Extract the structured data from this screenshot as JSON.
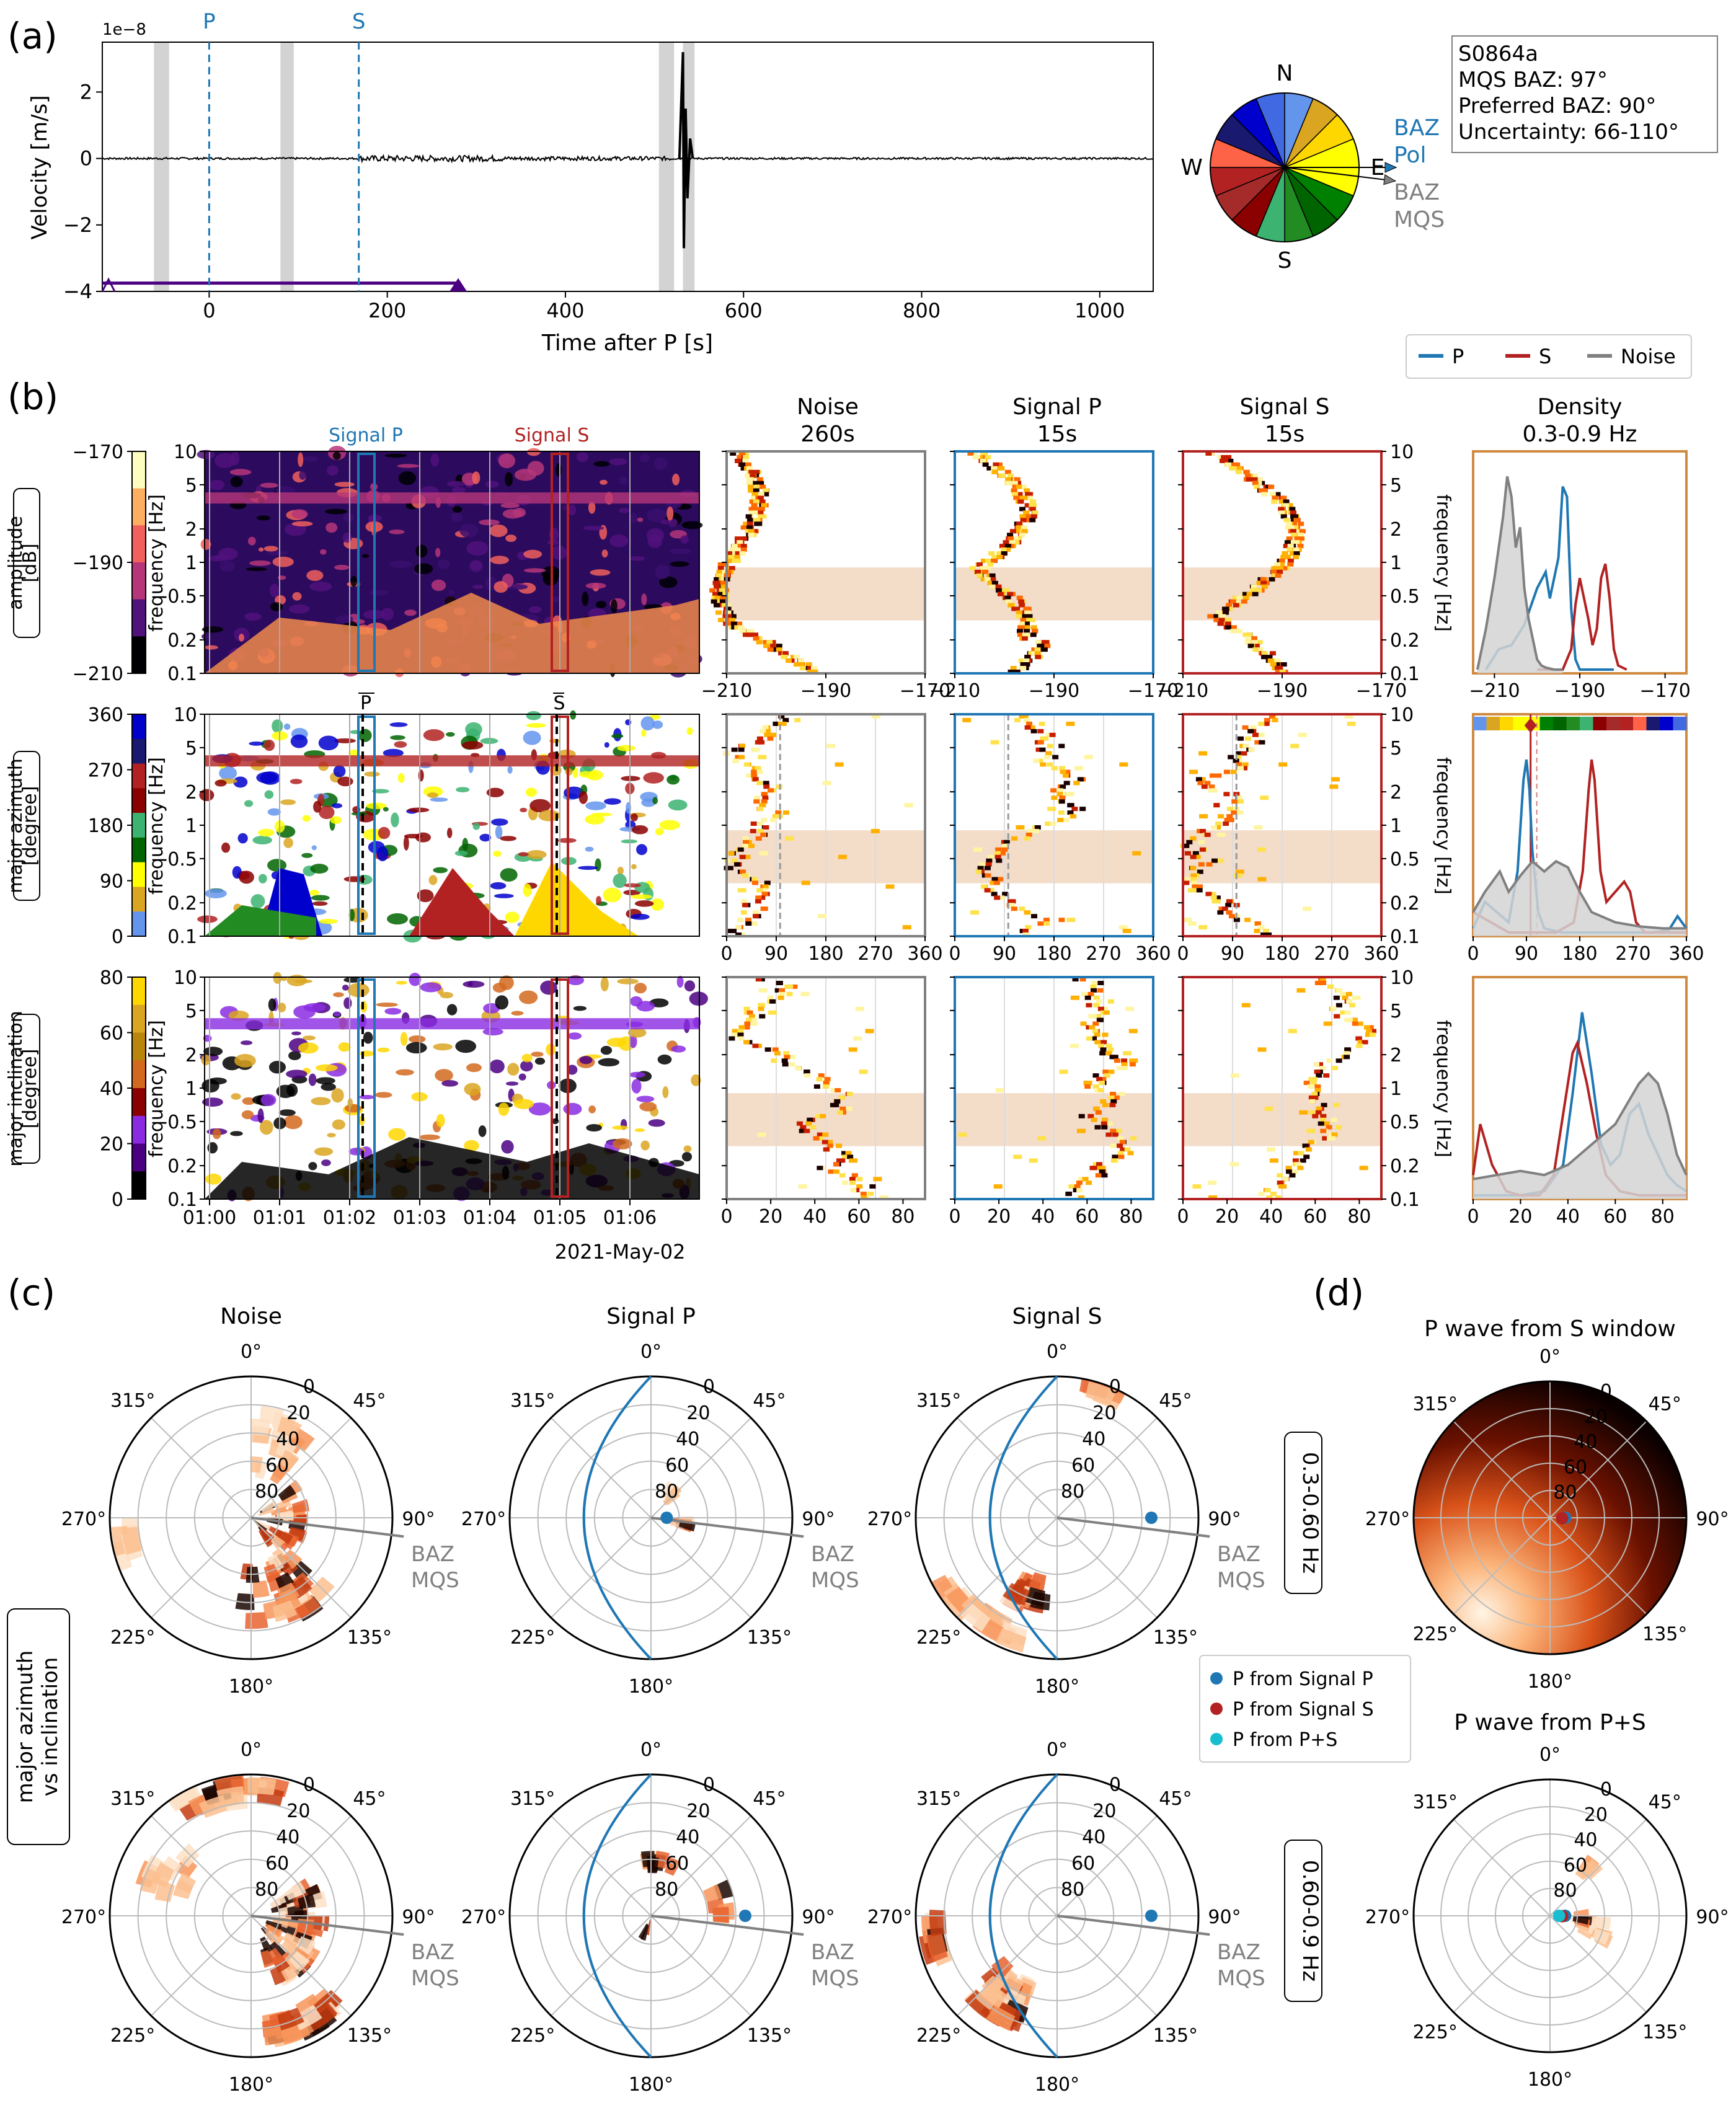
{
  "panel_labels": [
    "(a)",
    "(b)",
    "(c)",
    "(d)"
  ],
  "colors": {
    "p": "#1f77b4",
    "s": "#b22222",
    "noise": "#808080",
    "density_frame": "#d08a40",
    "band": "#f3dcc8",
    "waveform": "#000000",
    "gap": "#d3d3d3",
    "purple": "#4b0082",
    "p_from_ps": "#17becf"
  },
  "panel_a": {
    "exponent": "1e−8",
    "ylabel": "Velocity [m/s]",
    "xlabel": "Time after P [s]",
    "x_ticks": [
      "0",
      "200",
      "400",
      "600",
      "800",
      "1000"
    ],
    "y_ticks": [
      "2",
      "0",
      "−2",
      "−4"
    ],
    "p_label": "P",
    "s_label": "S",
    "compass_labels": {
      "n": "N",
      "e": "E",
      "s": "S",
      "w": "W"
    },
    "baz_pol": [
      "BAZ",
      "Pol"
    ],
    "baz_mqs": [
      "BAZ",
      "MQS"
    ],
    "info_box": [
      "S0864a",
      "MQS BAZ: 97°",
      "Preferred BAZ: 90°",
      "Uncertainty: 66-110°"
    ]
  },
  "legend_b": {
    "p": "P",
    "s": "S",
    "noise": "Noise"
  },
  "panel_b": {
    "col_titles": [
      [
        "Noise",
        "260s"
      ],
      [
        "Signal P",
        "15s"
      ],
      [
        "Signal S",
        "15s"
      ],
      [
        "Density",
        "0.3-0.9 Hz"
      ]
    ],
    "signal_p_label": "Signal P",
    "signal_s_label": "Signal S",
    "rows": [
      {
        "name": "amplitude",
        "unit": "[dB]",
        "cbar_ticks": [
          "−170",
          "−190",
          "−210"
        ],
        "x_ticks": [
          "−210",
          "−190",
          "−170"
        ]
      },
      {
        "name": "major azimuth",
        "unit": "[degree]",
        "cbar_ticks": [
          "360",
          "270",
          "180",
          "90",
          "0"
        ],
        "x_ticks": [
          "0",
          "90",
          "180",
          "270",
          "360"
        ]
      },
      {
        "name": "major inclination",
        "unit": "[degree]",
        "cbar_ticks": [
          "80",
          "60",
          "40",
          "20",
          "0"
        ],
        "x_ticks": [
          "0",
          "20",
          "40",
          "60",
          "80"
        ]
      }
    ],
    "freq_label": "frequency [Hz]",
    "freq_ticks": [
      "10",
      "5",
      "2",
      "1",
      "0.5",
      "0.2",
      "0.1"
    ],
    "time_ticks": [
      "01:00",
      "01:01",
      "01:02",
      "01:03",
      "01:04",
      "01:05",
      "01:06"
    ],
    "date_label": "2021-May-02",
    "p_marker": "P",
    "s_marker": "S"
  },
  "panel_c": {
    "col_titles": [
      "Noise",
      "Signal P",
      "Signal S"
    ],
    "row_labels": [
      "0.3-0.60 Hz",
      "0.60-0.9 Hz"
    ],
    "side_label": [
      "major azimuth",
      "vs inclination"
    ],
    "angle_labels": [
      "0°",
      "45°",
      "90°",
      "135°",
      "180°",
      "225°",
      "270°",
      "315°"
    ],
    "radial_labels": [
      "0",
      "20",
      "40",
      "60",
      "80"
    ],
    "baz_label": [
      "BAZ",
      "MQS"
    ],
    "legend": [
      "P from Signal P",
      "P from Signal S",
      "P from P+S"
    ]
  },
  "panel_d": {
    "titles": [
      "P wave from S window",
      "P wave from P+S"
    ]
  },
  "chart_data": [
    {
      "type": "line",
      "title": "",
      "xlabel": "Time after P [s]",
      "ylabel": "Velocity [m/s]",
      "xlim": [
        -120,
        1060
      ],
      "ylim": [
        -4,
        3.5
      ],
      "y_scale_factor": 1e-08,
      "markers": [
        {
          "name": "P",
          "x": 0
        },
        {
          "name": "S",
          "x": 168
        }
      ],
      "gaps": [
        [
          -62,
          -45
        ],
        [
          80,
          95
        ],
        [
          505,
          522
        ],
        [
          532,
          545
        ]
      ],
      "glitch_peak": {
        "x": 532,
        "y_max": 3.2,
        "y_min": -2.7
      },
      "window_bar": {
        "from": -120,
        "to": 288,
        "y": -3.75
      }
    },
    {
      "type": "pie",
      "title": "",
      "labels": [
        "N",
        "E",
        "S",
        "W"
      ],
      "baz_pol_deg": 90,
      "baz_mqs_deg": 97
    },
    {
      "type": "line",
      "title": "Density 0.3-0.9 Hz",
      "panel": "amplitude",
      "xlim": [
        -215,
        -165
      ],
      "series": [
        {
          "name": "P",
          "x": [
            -212,
            -209,
            -206,
            -203,
            -200,
            -198,
            -197,
            -195,
            -194,
            -193,
            -192,
            -191,
            -190,
            -188,
            -186,
            -182
          ],
          "y": [
            0,
            0.1,
            0.12,
            0.22,
            0.4,
            0.48,
            0.35,
            0.55,
            0.9,
            0.85,
            0.3,
            0.05,
            0,
            0,
            0,
            0
          ]
        },
        {
          "name": "S",
          "x": [
            -200,
            -194,
            -192,
            -191,
            -190,
            -188,
            -187,
            -186,
            -185,
            -184,
            -183,
            -182,
            -181,
            -179
          ],
          "y": [
            0,
            0,
            0.1,
            0.32,
            0.45,
            0.25,
            0.12,
            0.2,
            0.45,
            0.52,
            0.35,
            0.1,
            0.02,
            0
          ]
        },
        {
          "name": "Noise",
          "x": [
            -214,
            -212,
            -210,
            -209,
            -208,
            -207,
            -206,
            -205,
            -204,
            -203,
            -202,
            -201,
            -200,
            -199,
            -198,
            -196,
            -194
          ],
          "y": [
            0,
            0.2,
            0.45,
            0.6,
            0.75,
            0.95,
            0.85,
            0.6,
            0.7,
            0.4,
            0.25,
            0.15,
            0.05,
            0.02,
            0.01,
            0,
            0
          ]
        }
      ]
    },
    {
      "type": "line",
      "title": "",
      "panel": "major azimuth",
      "xlim": [
        0,
        360
      ],
      "vline": 97,
      "series": [
        {
          "name": "P",
          "x": [
            0,
            20,
            40,
            60,
            75,
            85,
            90,
            95,
            100,
            110,
            120,
            150,
            180,
            220,
            260,
            300,
            330,
            345,
            360
          ],
          "y": [
            0.02,
            0.15,
            0.1,
            0.05,
            0.3,
            0.75,
            0.85,
            0.7,
            0.4,
            0.1,
            0.02,
            0,
            0,
            0,
            0,
            0,
            0.01,
            0.08,
            0.02
          ]
        },
        {
          "name": "S",
          "x": [
            0,
            30,
            60,
            100,
            140,
            170,
            185,
            195,
            200,
            205,
            215,
            225,
            240,
            255,
            265,
            275,
            290,
            320,
            360
          ],
          "y": [
            0.1,
            0.05,
            0,
            0,
            0,
            0.05,
            0.3,
            0.7,
            0.85,
            0.75,
            0.3,
            0.15,
            0.2,
            0.25,
            0.2,
            0.05,
            0,
            0,
            0
          ]
        },
        {
          "name": "Noise",
          "x": [
            0,
            20,
            45,
            60,
            80,
            100,
            120,
            140,
            160,
            180,
            200,
            240,
            280,
            320,
            360
          ],
          "y": [
            0.1,
            0.2,
            0.3,
            0.2,
            0.28,
            0.35,
            0.3,
            0.35,
            0.32,
            0.2,
            0.1,
            0.05,
            0.03,
            0.02,
            0.02
          ]
        }
      ]
    },
    {
      "type": "line",
      "title": "",
      "panel": "major inclination",
      "xlim": [
        0,
        90
      ],
      "series": [
        {
          "name": "P",
          "x": [
            0,
            10,
            20,
            30,
            38,
            42,
            46,
            50,
            54,
            58,
            62,
            66,
            70,
            74,
            78,
            82,
            86,
            90
          ],
          "y": [
            0,
            0,
            0,
            0.02,
            0.15,
            0.5,
            0.9,
            0.6,
            0.25,
            0.15,
            0.2,
            0.4,
            0.45,
            0.3,
            0.2,
            0.1,
            0.05,
            0.02
          ]
        },
        {
          "name": "S",
          "x": [
            0,
            3,
            8,
            14,
            20,
            28,
            34,
            38,
            42,
            44,
            48,
            52,
            56,
            62,
            70,
            80,
            90
          ],
          "y": [
            0.1,
            0.35,
            0.15,
            0.02,
            0,
            0,
            0.1,
            0.4,
            0.7,
            0.75,
            0.55,
            0.3,
            0.1,
            0.02,
            0,
            0,
            0
          ]
        },
        {
          "name": "Noise",
          "x": [
            0,
            10,
            20,
            30,
            40,
            50,
            55,
            60,
            65,
            70,
            74,
            78,
            82,
            86,
            90
          ],
          "y": [
            0.08,
            0.1,
            0.12,
            0.1,
            0.15,
            0.25,
            0.3,
            0.35,
            0.45,
            0.55,
            0.6,
            0.55,
            0.4,
            0.2,
            0.1
          ]
        }
      ]
    },
    {
      "type": "scatter",
      "title": "",
      "panel": "major azimuth vs inclination (0.3-0.60 Hz)",
      "points": [
        {
          "name": "P from Signal P",
          "azimuth": 90,
          "inclination": 80
        },
        {
          "name": "P from Signal S",
          "azimuth": 92,
          "inclination": 82
        },
        {
          "name": "P from P+S",
          "azimuth": 90,
          "inclination": 84
        }
      ]
    }
  ]
}
